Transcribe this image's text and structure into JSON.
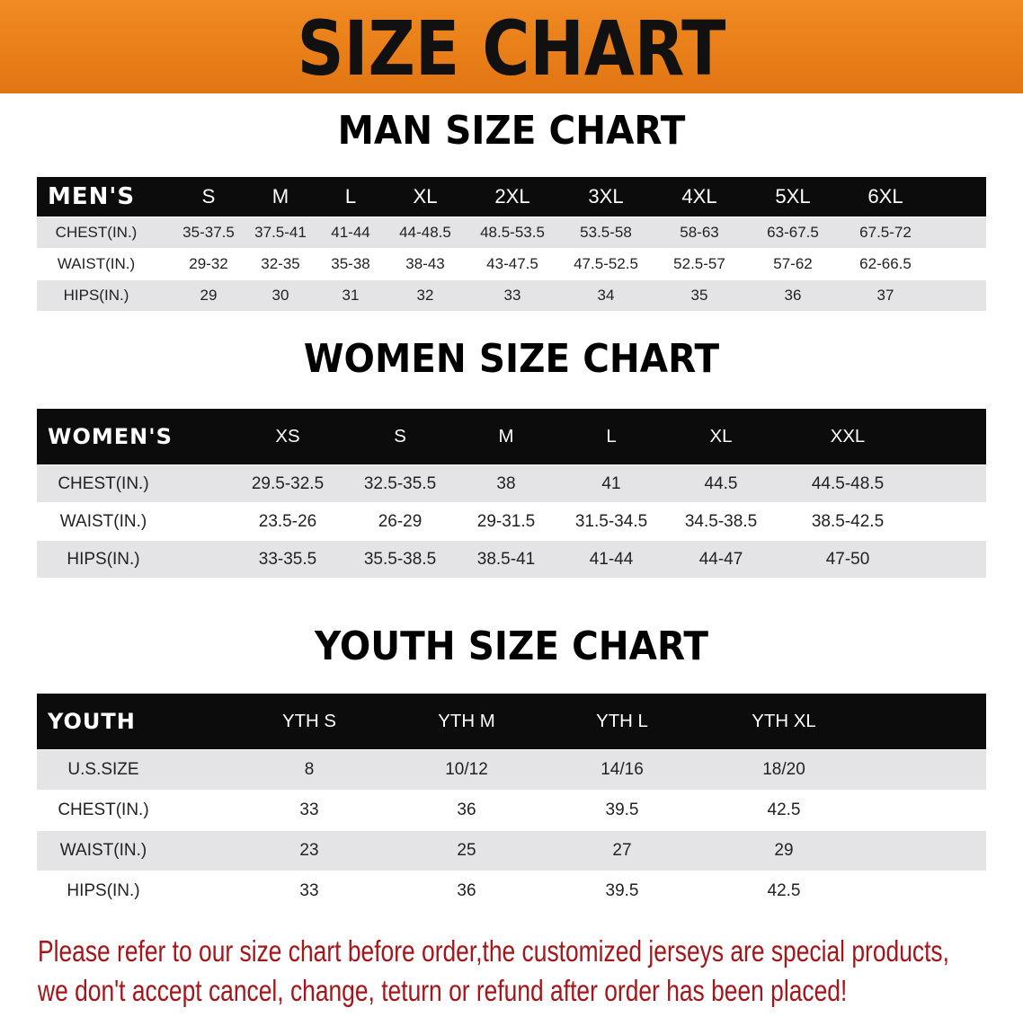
{
  "banner": {
    "title": "SIZE CHART",
    "color": "#e8801a"
  },
  "men": {
    "title": "MAN SIZE CHART",
    "header_label": "MEN'S",
    "sizes": [
      "S",
      "M",
      "L",
      "XL",
      "2XL",
      "3XL",
      "4XL",
      "5XL",
      "6XL"
    ],
    "rows": [
      {
        "label": "CHEST(IN.)",
        "values": [
          "35-37.5",
          "37.5-41",
          "41-44",
          "44-48.5",
          "48.5-53.5",
          "53.5-58",
          "58-63",
          "63-67.5",
          "67.5-72"
        ]
      },
      {
        "label": "WAIST(IN.)",
        "values": [
          "29-32",
          "32-35",
          "35-38",
          "38-43",
          "43-47.5",
          "47.5-52.5",
          "52.5-57",
          "57-62",
          "62-66.5"
        ]
      },
      {
        "label": "HIPS(IN.)",
        "values": [
          "29",
          "30",
          "31",
          "32",
          "33",
          "34",
          "35",
          "36",
          "37"
        ]
      }
    ]
  },
  "women": {
    "title": "WOMEN SIZE CHART",
    "header_label": "WOMEN'S",
    "sizes": [
      "XS",
      "S",
      "M",
      "L",
      "XL",
      "XXL"
    ],
    "rows": [
      {
        "label": "CHEST(IN.)",
        "values": [
          "29.5-32.5",
          "32.5-35.5",
          "38",
          "41",
          "44.5",
          "44.5-48.5"
        ]
      },
      {
        "label": "WAIST(IN.)",
        "values": [
          "23.5-26",
          "26-29",
          "29-31.5",
          "31.5-34.5",
          "34.5-38.5",
          "38.5-42.5"
        ]
      },
      {
        "label": "HIPS(IN.)",
        "values": [
          "33-35.5",
          "35.5-38.5",
          "38.5-41",
          "41-44",
          "44-47",
          "47-50"
        ]
      }
    ]
  },
  "youth": {
    "title": "YOUTH SIZE CHART",
    "header_label": "YOUTH",
    "sizes": [
      "YTH S",
      "YTH M",
      "YTH L",
      "YTH XL"
    ],
    "rows": [
      {
        "label": "U.S.SIZE",
        "values": [
          "8",
          "10/12",
          "14/16",
          "18/20"
        ]
      },
      {
        "label": "CHEST(IN.)",
        "values": [
          "33",
          "36",
          "39.5",
          "42.5"
        ]
      },
      {
        "label": "WAIST(IN.)",
        "values": [
          "23",
          "25",
          "27",
          "29"
        ]
      },
      {
        "label": "HIPS(IN.)",
        "values": [
          "33",
          "36",
          "39.5",
          "42.5"
        ]
      }
    ]
  },
  "notice": {
    "line1": "Please refer to our size chart before order,the customized jerseys are special products,",
    "line2": "we don't accept cancel, change, teturn or refund after order has been placed!",
    "color": "#a3171b"
  }
}
